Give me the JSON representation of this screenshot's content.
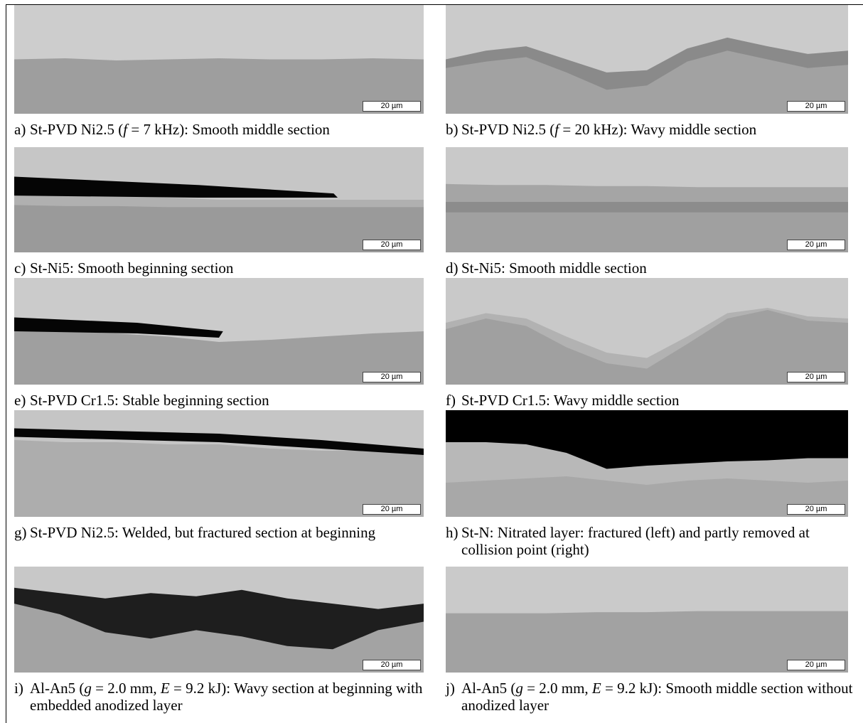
{
  "panels": [
    {
      "label": "a)",
      "caption": [
        {
          "text": "St-PVD Ni2.5 ("
        },
        {
          "text": "f",
          "italic": true
        },
        {
          "text": " = 7 kHz): Smooth middle section"
        }
      ],
      "scale_bar": "20 µm"
    },
    {
      "label": "b)",
      "caption": [
        {
          "text": "St-PVD Ni2.5 ("
        },
        {
          "text": "f",
          "italic": true
        },
        {
          "text": " = 20 kHz): Wavy middle section"
        }
      ],
      "scale_bar": "20 µm"
    },
    {
      "label": "c)",
      "caption": [
        {
          "text": "St-Ni5: Smooth beginning section"
        }
      ],
      "scale_bar": "20 µm"
    },
    {
      "label": "d)",
      "caption": [
        {
          "text": "St-Ni5: Smooth middle section"
        }
      ],
      "scale_bar": "20 µm"
    },
    {
      "label": "e)",
      "caption": [
        {
          "text": "St-PVD Cr1.5: Stable beginning section"
        }
      ],
      "scale_bar": "20 µm"
    },
    {
      "label": "f)",
      "caption": [
        {
          "text": "St-PVD Cr1.5: Wavy middle section"
        }
      ],
      "scale_bar": "20 µm"
    },
    {
      "label": "g)",
      "caption": [
        {
          "text": "St-PVD Ni2.5: Welded, but fractured section at beginning"
        }
      ],
      "scale_bar": "20 µm"
    },
    {
      "label": "h)",
      "caption": [
        {
          "text": "St-N: Nitrated layer: fractured (left) and partly removed at collision point (right)"
        }
      ],
      "scale_bar": "20 µm"
    },
    {
      "label": "i)",
      "caption": [
        {
          "text": "Al-An5 ("
        },
        {
          "text": "g",
          "italic": true
        },
        {
          "text": " = 2.0 mm, "
        },
        {
          "text": "E",
          "italic": true
        },
        {
          "text": " = 9.2 kJ): Wavy section at beginning with embedded anodized layer"
        }
      ],
      "scale_bar": "20 µm"
    },
    {
      "label": "j)",
      "caption": [
        {
          "text": "Al-An5 ("
        },
        {
          "text": "g",
          "italic": true
        },
        {
          "text": " = 2.0 mm, "
        },
        {
          "text": "E",
          "italic": true
        },
        {
          "text": " = 9.2 kJ): Smooth middle section without anodized layer"
        }
      ],
      "scale_bar": "20 µm"
    }
  ]
}
